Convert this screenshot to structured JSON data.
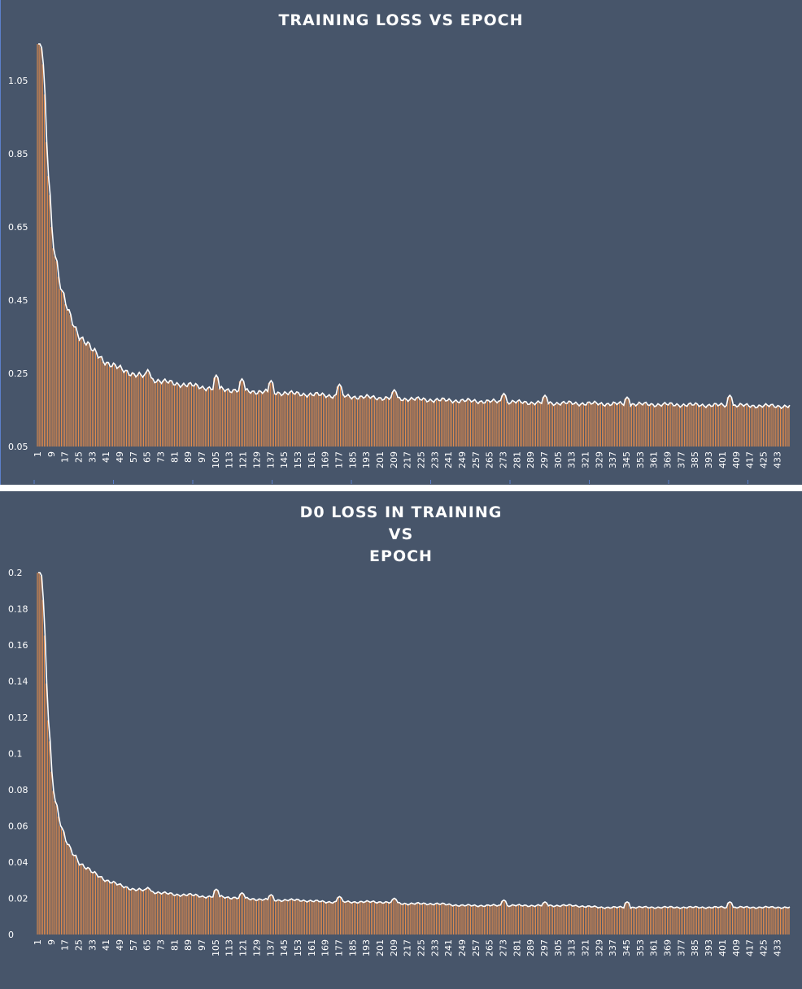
{
  "chart_data": [
    {
      "type": "bar",
      "title": "TRAINING LOSS VS EPOCH",
      "xlabel": "",
      "ylabel": "",
      "ylim": [
        0.05,
        1.15
      ],
      "yticks": [
        "1.05",
        "0.85",
        "0.65",
        "0.45",
        "0.25",
        "0.05"
      ],
      "ytick_values": [
        1.05,
        0.85,
        0.65,
        0.45,
        0.25,
        0.05
      ],
      "xticks": [
        "1",
        "9",
        "17",
        "25",
        "33",
        "41",
        "49",
        "57",
        "65",
        "73",
        "81",
        "89",
        "97",
        "105",
        "113",
        "121",
        "129",
        "137",
        "145",
        "153",
        "161",
        "169",
        "177",
        "185",
        "193",
        "201",
        "209",
        "217",
        "225",
        "233",
        "241",
        "249",
        "257",
        "265",
        "273",
        "281",
        "289",
        "297",
        "305",
        "313",
        "321",
        "329",
        "337",
        "345",
        "353",
        "361",
        "369",
        "377",
        "385",
        "393",
        "401",
        "409",
        "417",
        "425",
        "433"
      ],
      "x_range": [
        1,
        440
      ],
      "curve": [
        [
          1,
          1.15
        ],
        [
          3,
          1.15
        ],
        [
          5,
          0.98
        ],
        [
          7,
          0.8
        ],
        [
          9,
          0.65
        ],
        [
          11,
          0.58
        ],
        [
          13,
          0.52
        ],
        [
          15,
          0.47
        ],
        [
          17,
          0.44
        ],
        [
          19,
          0.41
        ],
        [
          21,
          0.39
        ],
        [
          23,
          0.37
        ],
        [
          25,
          0.355
        ],
        [
          29,
          0.335
        ],
        [
          33,
          0.31
        ],
        [
          37,
          0.295
        ],
        [
          41,
          0.28
        ],
        [
          45,
          0.27
        ],
        [
          49,
          0.262
        ],
        [
          57,
          0.248
        ],
        [
          65,
          0.238
        ],
        [
          73,
          0.228
        ],
        [
          81,
          0.222
        ],
        [
          89,
          0.218
        ],
        [
          97,
          0.212
        ],
        [
          105,
          0.208
        ],
        [
          121,
          0.202
        ],
        [
          137,
          0.198
        ],
        [
          153,
          0.194
        ],
        [
          169,
          0.19
        ],
        [
          185,
          0.186
        ],
        [
          201,
          0.183
        ],
        [
          217,
          0.18
        ],
        [
          233,
          0.177
        ],
        [
          249,
          0.175
        ],
        [
          265,
          0.173
        ],
        [
          281,
          0.171
        ],
        [
          297,
          0.169
        ],
        [
          313,
          0.168
        ],
        [
          329,
          0.167
        ],
        [
          345,
          0.166
        ],
        [
          361,
          0.165
        ],
        [
          377,
          0.164
        ],
        [
          393,
          0.163
        ],
        [
          409,
          0.162
        ],
        [
          425,
          0.161
        ],
        [
          440,
          0.16
        ]
      ],
      "spikes": [
        [
          65,
          0.26
        ],
        [
          105,
          0.245
        ],
        [
          120,
          0.235
        ],
        [
          137,
          0.23
        ],
        [
          177,
          0.22
        ],
        [
          209,
          0.205
        ],
        [
          273,
          0.195
        ],
        [
          297,
          0.19
        ],
        [
          345,
          0.185
        ],
        [
          405,
          0.19
        ]
      ]
    },
    {
      "type": "bar",
      "title": "D0 LOSS IN TRAINING",
      "title_lines": [
        "D0 LOSS IN TRAINING",
        "VS",
        "EPOCH"
      ],
      "xlabel": "",
      "ylabel": "",
      "ylim": [
        0,
        0.2
      ],
      "yticks": [
        "0.2",
        "0.18",
        "0.16",
        "0.14",
        "0.12",
        "0.1",
        "0.08",
        "0.06",
        "0.04",
        "0.02",
        "0"
      ],
      "ytick_values": [
        0.2,
        0.18,
        0.16,
        0.14,
        0.12,
        0.1,
        0.08,
        0.06,
        0.04,
        0.02,
        0
      ],
      "xticks": [
        "1",
        "9",
        "17",
        "25",
        "33",
        "41",
        "49",
        "57",
        "65",
        "73",
        "81",
        "89",
        "97",
        "105",
        "113",
        "121",
        "129",
        "137",
        "145",
        "153",
        "161",
        "169",
        "177",
        "185",
        "193",
        "201",
        "209",
        "217",
        "225",
        "233",
        "241",
        "249",
        "257",
        "265",
        "273",
        "281",
        "289",
        "297",
        "305",
        "313",
        "321",
        "329",
        "337",
        "345",
        "353",
        "361",
        "369",
        "377",
        "385",
        "393",
        "401",
        "409",
        "417",
        "425",
        "433"
      ],
      "x_range": [
        1,
        440
      ],
      "curve": [
        [
          1,
          0.2
        ],
        [
          3,
          0.2
        ],
        [
          5,
          0.16
        ],
        [
          7,
          0.12
        ],
        [
          9,
          0.09
        ],
        [
          11,
          0.075
        ],
        [
          13,
          0.066
        ],
        [
          15,
          0.058
        ],
        [
          17,
          0.052
        ],
        [
          19,
          0.048
        ],
        [
          21,
          0.045
        ],
        [
          23,
          0.043
        ],
        [
          25,
          0.04
        ],
        [
          29,
          0.037
        ],
        [
          33,
          0.034
        ],
        [
          37,
          0.032
        ],
        [
          41,
          0.03
        ],
        [
          49,
          0.027
        ],
        [
          57,
          0.025
        ],
        [
          65,
          0.024
        ],
        [
          73,
          0.023
        ],
        [
          81,
          0.022
        ],
        [
          89,
          0.022
        ],
        [
          97,
          0.021
        ],
        [
          105,
          0.021
        ],
        [
          121,
          0.02
        ],
        [
          137,
          0.019
        ],
        [
          153,
          0.019
        ],
        [
          169,
          0.018
        ],
        [
          185,
          0.018
        ],
        [
          201,
          0.018
        ],
        [
          217,
          0.017
        ],
        [
          233,
          0.017
        ],
        [
          249,
          0.016
        ],
        [
          265,
          0.016
        ],
        [
          281,
          0.016
        ],
        [
          297,
          0.016
        ],
        [
          313,
          0.016
        ],
        [
          329,
          0.015
        ],
        [
          345,
          0.015
        ],
        [
          361,
          0.015
        ],
        [
          377,
          0.015
        ],
        [
          393,
          0.015
        ],
        [
          409,
          0.015
        ],
        [
          425,
          0.015
        ],
        [
          440,
          0.015
        ]
      ],
      "spikes": [
        [
          65,
          0.026
        ],
        [
          105,
          0.025
        ],
        [
          120,
          0.023
        ],
        [
          137,
          0.022
        ],
        [
          177,
          0.021
        ],
        [
          209,
          0.02
        ],
        [
          273,
          0.019
        ],
        [
          297,
          0.018
        ],
        [
          345,
          0.018
        ],
        [
          405,
          0.018
        ]
      ]
    }
  ],
  "colors": {
    "background": "#47556a",
    "bar": "#e08a4c",
    "line": "#ffffff",
    "text": "#ffffff"
  }
}
